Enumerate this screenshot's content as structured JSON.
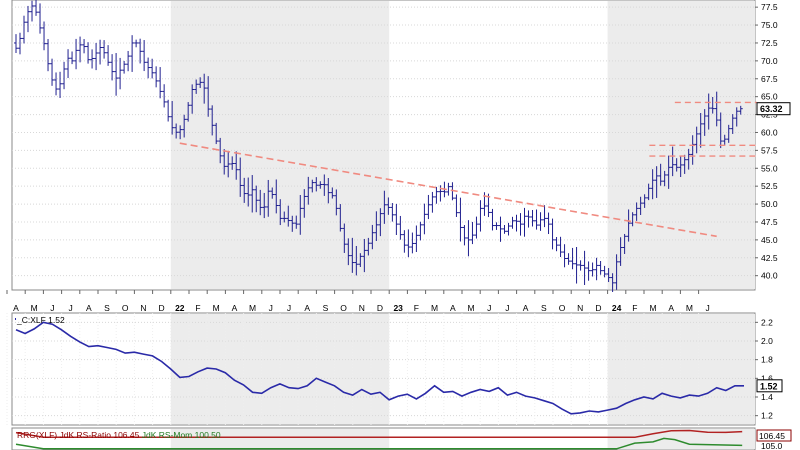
{
  "chart_data": [
    {
      "type": "ohlc",
      "ylim": [
        38,
        78.5
      ],
      "y_ticks": [
        "40.0",
        "42.5",
        "45.0",
        "47.5",
        "50.0",
        "52.5",
        "55.0",
        "57.5",
        "60.0",
        "62.5",
        "65.0",
        "67.5",
        "70.0",
        "72.5",
        "75.0",
        "77.5"
      ],
      "x_ticks": [
        "A",
        "M",
        "J",
        "J",
        "A",
        "S",
        "O",
        "N",
        "D",
        "22",
        "F",
        "M",
        "A",
        "M",
        "J",
        "J",
        "A",
        "S",
        "O",
        "N",
        "D",
        "23",
        "F",
        "M",
        "A",
        "M",
        "J",
        "J",
        "A",
        "S",
        "O",
        "N",
        "D",
        "24",
        "F",
        "M",
        "A",
        "M",
        "J"
      ],
      "shaded_years": [
        "22",
        "24"
      ],
      "last_price_label": "63.32",
      "last_price": 63.32,
      "price_path": [
        [
          0,
          72.5
        ],
        [
          0.3,
          71.5
        ],
        [
          0.6,
          75
        ],
        [
          0.9,
          77
        ],
        [
          1.2,
          78
        ],
        [
          1.5,
          75
        ],
        [
          1.8,
          72
        ],
        [
          2.1,
          68
        ],
        [
          2.4,
          66
        ],
        [
          2.7,
          67
        ],
        [
          3.0,
          70.5
        ],
        [
          3.3,
          70
        ],
        [
          3.6,
          72
        ],
        [
          3.9,
          72.5
        ],
        [
          4.2,
          70
        ],
        [
          4.5,
          70.5
        ],
        [
          4.8,
          72
        ],
        [
          5.1,
          71
        ],
        [
          5.4,
          69
        ],
        [
          5.7,
          67.5
        ],
        [
          6.0,
          69
        ],
        [
          6.3,
          70
        ],
        [
          6.6,
          72.5
        ],
        [
          6.9,
          72.5
        ],
        [
          7.2,
          70
        ],
        [
          7.5,
          69
        ],
        [
          7.8,
          68
        ],
        [
          8.1,
          66
        ],
        [
          8.4,
          64
        ],
        [
          8.7,
          61
        ],
        [
          9.0,
          60
        ],
        [
          9.3,
          60.5
        ],
        [
          9.6,
          63
        ],
        [
          9.9,
          66
        ],
        [
          10.2,
          67
        ],
        [
          10.5,
          67
        ],
        [
          10.8,
          63
        ],
        [
          11.1,
          60
        ],
        [
          11.4,
          57
        ],
        [
          11.7,
          55
        ],
        [
          12.0,
          56
        ],
        [
          12.3,
          55
        ],
        [
          12.6,
          52
        ],
        [
          12.9,
          51
        ],
        [
          13.2,
          52
        ],
        [
          13.5,
          50
        ],
        [
          13.8,
          49
        ],
        [
          14.1,
          52
        ],
        [
          14.4,
          51
        ],
        [
          14.7,
          48
        ],
        [
          15.0,
          48
        ],
        [
          15.3,
          47.5
        ],
        [
          15.6,
          47
        ],
        [
          15.9,
          50
        ],
        [
          16.2,
          52
        ],
        [
          16.5,
          53
        ],
        [
          16.8,
          52.5
        ],
        [
          17.1,
          53
        ],
        [
          17.4,
          51.5
        ],
        [
          17.7,
          51
        ],
        [
          18.0,
          47
        ],
        [
          18.3,
          44
        ],
        [
          18.6,
          42
        ],
        [
          18.9,
          41.5
        ],
        [
          19.2,
          43
        ],
        [
          19.5,
          44
        ],
        [
          19.8,
          46
        ],
        [
          20.1,
          47.5
        ],
        [
          20.4,
          50
        ],
        [
          20.7,
          49.5
        ],
        [
          21.0,
          48
        ],
        [
          21.3,
          46
        ],
        [
          21.6,
          44
        ],
        [
          21.9,
          44
        ],
        [
          22.2,
          45.5
        ],
        [
          22.5,
          47.5
        ],
        [
          22.8,
          49.5
        ],
        [
          23.1,
          51
        ],
        [
          23.4,
          52
        ],
        [
          23.7,
          51.5
        ],
        [
          24.0,
          52.5
        ],
        [
          24.3,
          50
        ],
        [
          24.6,
          47
        ],
        [
          24.9,
          45
        ],
        [
          25.2,
          45
        ],
        [
          25.5,
          47
        ],
        [
          25.8,
          50
        ],
        [
          26.1,
          49.5
        ],
        [
          26.4,
          47
        ],
        [
          26.7,
          47
        ],
        [
          27.0,
          46
        ],
        [
          27.3,
          47
        ],
        [
          27.6,
          48
        ],
        [
          27.9,
          47
        ],
        [
          28.2,
          48.5
        ],
        [
          28.5,
          48
        ],
        [
          28.8,
          47
        ],
        [
          29.1,
          48
        ],
        [
          29.4,
          48
        ],
        [
          29.7,
          45
        ],
        [
          30.0,
          44
        ],
        [
          30.3,
          42.5
        ],
        [
          30.6,
          42
        ],
        [
          30.9,
          41.5
        ],
        [
          31.2,
          41.5
        ],
        [
          31.5,
          41
        ],
        [
          31.8,
          40.5
        ],
        [
          32.1,
          41.5
        ],
        [
          32.4,
          40.5
        ],
        [
          32.7,
          40
        ],
        [
          33.0,
          39
        ],
        [
          33.3,
          43
        ],
        [
          33.6,
          45
        ],
        [
          33.9,
          47.5
        ],
        [
          34.2,
          49
        ],
        [
          34.5,
          50
        ],
        [
          34.8,
          51
        ],
        [
          35.1,
          53
        ],
        [
          35.4,
          54
        ],
        [
          35.7,
          53
        ],
        [
          36.0,
          55
        ],
        [
          36.3,
          55.5
        ],
        [
          36.6,
          55
        ],
        [
          36.9,
          56
        ],
        [
          37.2,
          57
        ],
        [
          37.5,
          59
        ],
        [
          37.8,
          61
        ],
        [
          38.1,
          62.5
        ],
        [
          38.4,
          64
        ],
        [
          38.7,
          62
        ],
        [
          39.0,
          58
        ],
        [
          39.3,
          60
        ],
        [
          39.6,
          62
        ],
        [
          39.9,
          63.32
        ]
      ],
      "trendline": {
        "from": [
          9,
          58.5
        ],
        "to": [
          38.5,
          45.5
        ]
      },
      "resistance_lines": [
        {
          "x": [
            36.2,
            40.7
          ],
          "y": 64.2
        },
        {
          "x": [
            34.8,
            40.7
          ],
          "y": 58.2
        },
        {
          "x": [
            34.8,
            40.7
          ],
          "y": 56.7
        }
      ]
    },
    {
      "type": "line",
      "title": "_C:XLF 1.52",
      "ylim": [
        1.1,
        2.3
      ],
      "y_ticks": [
        "2.2",
        "2.0",
        "1.8",
        "1.6",
        "1.4",
        "1.2"
      ],
      "last_value_label": "1.52",
      "last_value": 1.52,
      "color": "#2a2aa8",
      "values": [
        [
          0,
          2.12
        ],
        [
          0.5,
          2.08
        ],
        [
          1.0,
          2.13
        ],
        [
          1.5,
          2.2
        ],
        [
          2.0,
          2.18
        ],
        [
          2.5,
          2.12
        ],
        [
          3.0,
          2.05
        ],
        [
          3.5,
          1.99
        ],
        [
          4.0,
          1.94
        ],
        [
          4.5,
          1.95
        ],
        [
          5.0,
          1.93
        ],
        [
          5.5,
          1.91
        ],
        [
          6.0,
          1.87
        ],
        [
          6.5,
          1.88
        ],
        [
          7.0,
          1.86
        ],
        [
          7.5,
          1.84
        ],
        [
          8.0,
          1.78
        ],
        [
          8.5,
          1.7
        ],
        [
          9.0,
          1.61
        ],
        [
          9.5,
          1.62
        ],
        [
          10.0,
          1.67
        ],
        [
          10.5,
          1.71
        ],
        [
          11.0,
          1.7
        ],
        [
          11.5,
          1.66
        ],
        [
          12.0,
          1.58
        ],
        [
          12.5,
          1.53
        ],
        [
          13.0,
          1.45
        ],
        [
          13.5,
          1.44
        ],
        [
          14.0,
          1.5
        ],
        [
          14.5,
          1.54
        ],
        [
          15.0,
          1.5
        ],
        [
          15.5,
          1.49
        ],
        [
          16.0,
          1.52
        ],
        [
          16.5,
          1.6
        ],
        [
          17.0,
          1.56
        ],
        [
          17.5,
          1.52
        ],
        [
          18.0,
          1.45
        ],
        [
          18.5,
          1.42
        ],
        [
          19.0,
          1.48
        ],
        [
          19.5,
          1.43
        ],
        [
          20.0,
          1.45
        ],
        [
          20.5,
          1.37
        ],
        [
          21.0,
          1.41
        ],
        [
          21.5,
          1.43
        ],
        [
          22.0,
          1.38
        ],
        [
          22.5,
          1.44
        ],
        [
          23.0,
          1.52
        ],
        [
          23.5,
          1.45
        ],
        [
          24.0,
          1.46
        ],
        [
          24.5,
          1.41
        ],
        [
          25.0,
          1.45
        ],
        [
          25.5,
          1.48
        ],
        [
          26.0,
          1.46
        ],
        [
          26.5,
          1.5
        ],
        [
          27.0,
          1.42
        ],
        [
          27.5,
          1.45
        ],
        [
          28.0,
          1.41
        ],
        [
          28.5,
          1.39
        ],
        [
          29.0,
          1.36
        ],
        [
          29.5,
          1.33
        ],
        [
          30.0,
          1.27
        ],
        [
          30.5,
          1.22
        ],
        [
          31.0,
          1.23
        ],
        [
          31.5,
          1.25
        ],
        [
          32.0,
          1.24
        ],
        [
          32.5,
          1.26
        ],
        [
          33.0,
          1.28
        ],
        [
          33.5,
          1.33
        ],
        [
          34.0,
          1.37
        ],
        [
          34.5,
          1.4
        ],
        [
          35.0,
          1.38
        ],
        [
          35.5,
          1.44
        ],
        [
          36.0,
          1.41
        ],
        [
          36.5,
          1.39
        ],
        [
          37.0,
          1.42
        ],
        [
          37.5,
          1.41
        ],
        [
          38.0,
          1.44
        ],
        [
          38.5,
          1.5
        ],
        [
          39.0,
          1.47
        ],
        [
          39.5,
          1.52
        ],
        [
          40.0,
          1.52
        ]
      ]
    },
    {
      "type": "line",
      "title": "RRG(XLF) JdK RS-Ratio 106.45 JdK RS-Mom 100.50",
      "legend": [
        {
          "text": "RRG(XLF)",
          "color": "#8b0000"
        },
        {
          "text": " JdK RS-Ratio 106.45",
          "color": "#8b0000"
        },
        {
          "text": " JdK RS-Mom 100.50",
          "color": "#1e7a1e"
        }
      ],
      "y_ticks": [
        "105.0"
      ],
      "last_value_label": "106.45",
      "series": [
        {
          "name": "JdK RS-Ratio",
          "color": "#b22222",
          "values": [
            [
              0,
              106
            ],
            [
              1.5,
              104
            ],
            [
              34,
              104
            ],
            [
              35,
              105.5
            ],
            [
              36,
              106.8
            ],
            [
              37,
              106.9
            ],
            [
              38,
              106.2
            ],
            [
              39,
              106.1
            ],
            [
              39.9,
              106.45
            ]
          ]
        },
        {
          "name": "JdK RS-Mom",
          "color": "#2e8b2e",
          "values": [
            [
              0,
              101
            ],
            [
              1.5,
              99
            ],
            [
              33,
              99
            ],
            [
              34,
              101.5
            ],
            [
              35,
              102
            ],
            [
              35.6,
              103.5
            ],
            [
              36.2,
              103
            ],
            [
              37,
              101
            ],
            [
              39.9,
              100.5
            ]
          ]
        }
      ]
    }
  ]
}
